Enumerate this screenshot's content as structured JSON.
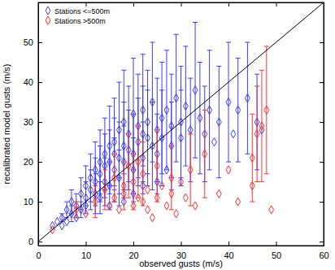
{
  "chart_data": {
    "type": "scatter",
    "x_label": "observed gusts (m/s)",
    "y_label": "recalibrated model gusts (m/s)",
    "xlim": [
      0,
      60
    ],
    "ylim": [
      -1,
      60
    ],
    "xticks": [
      0,
      10,
      20,
      30,
      40,
      50,
      60
    ],
    "yticks": [
      0,
      10,
      20,
      30,
      40,
      50
    ],
    "legend": "upper left",
    "series": [
      {
        "name": "Stations <=500m",
        "color": "#3b3bff",
        "marker": "diamond",
        "x": [
          3,
          4,
          5,
          5,
          6,
          6,
          7,
          7,
          8,
          8,
          9,
          9,
          10,
          10,
          10,
          11,
          11,
          12,
          12,
          12,
          13,
          13,
          13,
          14,
          14,
          14,
          15,
          15,
          15,
          16,
          16,
          16,
          17,
          17,
          17,
          18,
          18,
          18,
          19,
          19,
          20,
          20,
          20,
          21,
          21,
          22,
          22,
          22,
          23,
          23,
          24,
          24,
          25,
          25,
          26,
          26,
          27,
          28,
          28,
          29,
          30,
          30,
          31,
          32,
          33,
          34,
          35,
          36,
          38,
          40,
          42,
          44,
          46,
          47,
          41,
          37,
          18,
          20,
          22,
          25,
          27,
          15
        ],
        "values": [
          4,
          5,
          6,
          4,
          8,
          5,
          7,
          10,
          9,
          6,
          12,
          8,
          11,
          14,
          9,
          13,
          16,
          12,
          18,
          15,
          17,
          20,
          11,
          15,
          22,
          19,
          14,
          24,
          20,
          18,
          25,
          22,
          21,
          28,
          16,
          24,
          20,
          30,
          23,
          27,
          22,
          32,
          18,
          25,
          29,
          27,
          21,
          33,
          26,
          30,
          24,
          35,
          28,
          22,
          31,
          26,
          33,
          29,
          24,
          36,
          30,
          26,
          34,
          28,
          38,
          31,
          27,
          33,
          30,
          35,
          33,
          36,
          30,
          28,
          27,
          25,
          10,
          12,
          14,
          15,
          18,
          9
        ],
        "errors": [
          null,
          null,
          1,
          null,
          2,
          null,
          2,
          3,
          3,
          null,
          4,
          2,
          4,
          5,
          null,
          5,
          6,
          5,
          7,
          6,
          7,
          8,
          4,
          6,
          9,
          8,
          6,
          10,
          8,
          8,
          11,
          9,
          9,
          12,
          7,
          11,
          9,
          13,
          10,
          12,
          10,
          14,
          8,
          11,
          13,
          12,
          9,
          14,
          12,
          13,
          11,
          15,
          13,
          10,
          14,
          12,
          15,
          13,
          11,
          16,
          14,
          12,
          15,
          13,
          17,
          14,
          12,
          15,
          14,
          15,
          13,
          14,
          12,
          null,
          null,
          null,
          null,
          null,
          null,
          null,
          null,
          null
        ]
      },
      {
        "name": "Stations >500m",
        "color": "#ff3030",
        "marker": "diamond",
        "x": [
          3,
          8,
          10,
          12,
          14,
          15,
          16,
          16,
          17,
          18,
          18,
          19,
          20,
          20,
          21,
          21,
          22,
          22,
          23,
          23,
          24,
          25,
          25,
          26,
          27,
          28,
          28,
          29,
          30,
          31,
          32,
          33,
          35,
          38,
          40,
          42,
          45,
          46,
          47,
          48,
          49,
          45
        ],
        "values": [
          3,
          8,
          7,
          10,
          13,
          9,
          11,
          16,
          8,
          14,
          12,
          19,
          9,
          15,
          11,
          20,
          10,
          17,
          8,
          13,
          6,
          11,
          19,
          14,
          9,
          16,
          12,
          7,
          15,
          11,
          18,
          9,
          22,
          12,
          18,
          10,
          14,
          27,
          29,
          33,
          8,
          21
        ],
        "errors": [
          null,
          2,
          null,
          4,
          5,
          null,
          null,
          6,
          null,
          6,
          null,
          8,
          null,
          7,
          null,
          9,
          null,
          8,
          null,
          null,
          null,
          null,
          9,
          null,
          null,
          8,
          null,
          null,
          null,
          null,
          9,
          null,
          11,
          null,
          null,
          null,
          null,
          12,
          14,
          16,
          null,
          11
        ]
      },
      {
        "type": "line",
        "color": "#000000",
        "x": [
          0,
          60
        ],
        "values": [
          0,
          60
        ]
      }
    ]
  }
}
